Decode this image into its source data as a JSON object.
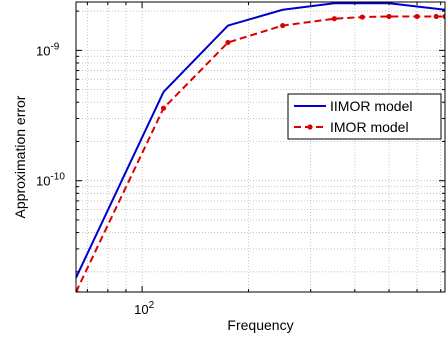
{
  "chart_data": {
    "type": "line",
    "xlabel": "Frequency",
    "ylabel": "Approximation error",
    "x_scale": "log",
    "y_scale": "log",
    "xlim": [
      65,
      720
    ],
    "ylim": [
      1.4e-11,
      2.35e-09
    ],
    "x_ticks": [
      {
        "value": 100,
        "base": "10",
        "exp": "2"
      }
    ],
    "y_ticks": [
      {
        "value": 1e-10,
        "base": "10",
        "exp": "-10"
      },
      {
        "value": 1e-09,
        "base": "10",
        "exp": "-9"
      }
    ],
    "grid": true,
    "legend_position": "right",
    "series": [
      {
        "name": "IIMOR model",
        "color": "#0000cc",
        "style": "solid",
        "marker": "none",
        "x": [
          65,
          115,
          175,
          250,
          350,
          500,
          720
        ],
        "y": [
          1.8e-11,
          4.8e-10,
          1.55e-09,
          2.05e-09,
          2.3e-09,
          2.3e-09,
          2.05e-09
        ]
      },
      {
        "name": "IMOR model",
        "color": "#dd0000",
        "style": "dashed",
        "marker": "dot",
        "x": [
          65,
          115,
          175,
          250,
          350,
          420,
          500,
          600,
          680,
          720
        ],
        "y": [
          1.4e-11,
          3.6e-10,
          1.15e-09,
          1.55e-09,
          1.75e-09,
          1.8e-09,
          1.82e-09,
          1.82e-09,
          1.82e-09,
          1.82e-09
        ]
      }
    ]
  }
}
